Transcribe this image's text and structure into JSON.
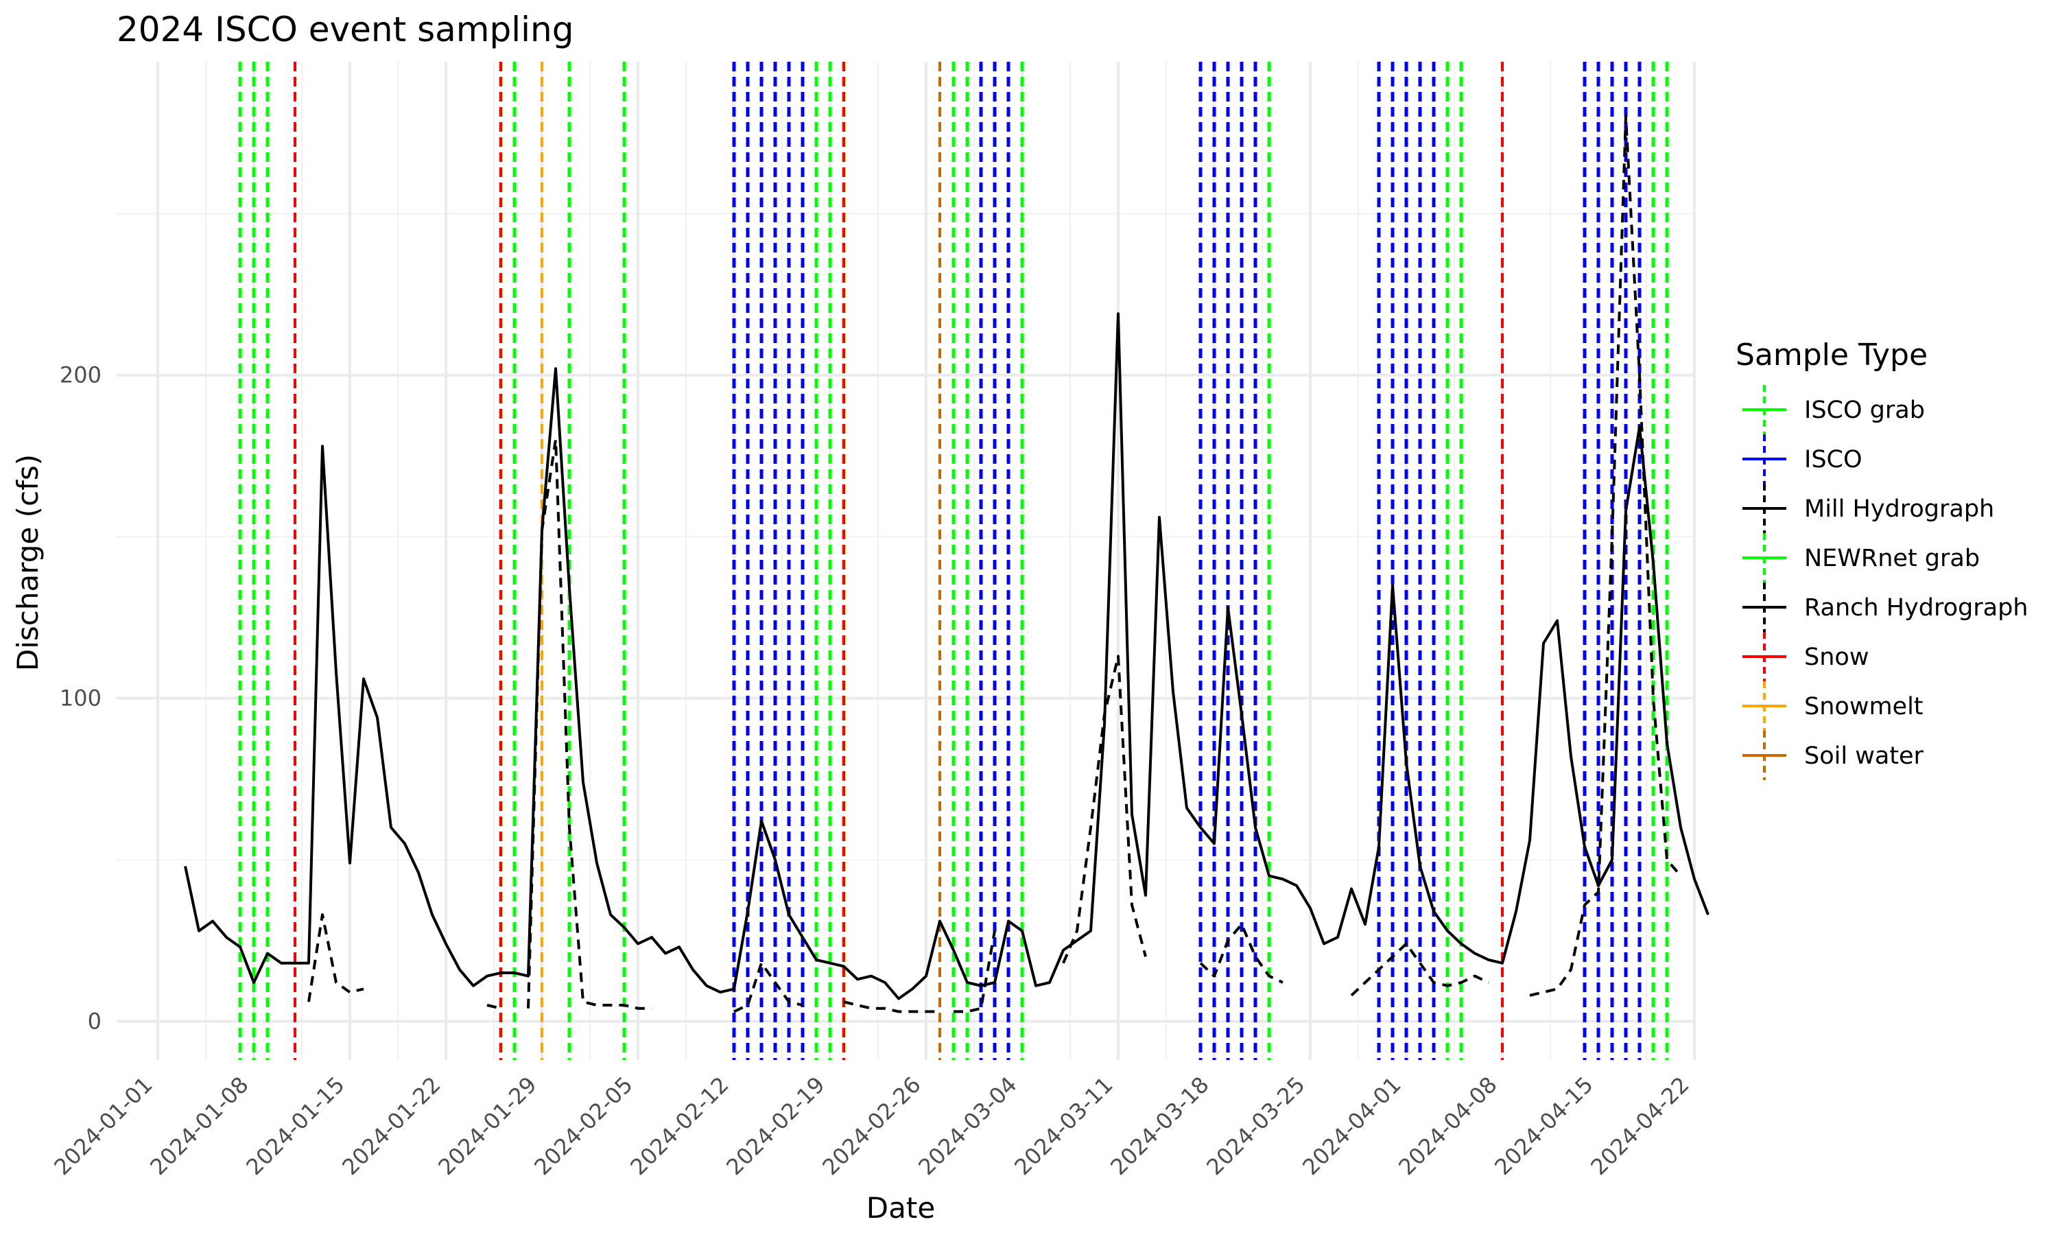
{
  "chart_data": {
    "type": "line",
    "title": "2024 ISCO event sampling",
    "xlabel": "Date",
    "ylabel": "Discharge (cfs)",
    "x_ticks": [
      "2024-01-01",
      "2024-01-08",
      "2024-01-15",
      "2024-01-22",
      "2024-01-29",
      "2024-02-05",
      "2024-02-12",
      "2024-02-19",
      "2024-02-26",
      "2024-03-04",
      "2024-03-11",
      "2024-03-18",
      "2024-03-25",
      "2024-04-01",
      "2024-04-08",
      "2024-04-15",
      "2024-04-22"
    ],
    "y_ticks": [
      0,
      100,
      200
    ],
    "xlim": [
      "2023-12-29",
      "2024-04-22"
    ],
    "ylim": [
      -12,
      297
    ],
    "grid": true,
    "legend": {
      "title": "Sample Type",
      "position": "right",
      "items": [
        {
          "label": "ISCO grab",
          "color": "#00ff00",
          "line": "solid",
          "marker": "dashed"
        },
        {
          "label": "ISCO",
          "color": "#0000ff",
          "line": "solid",
          "marker": "dashed"
        },
        {
          "label": "Mill Hydrograph",
          "color": "#000000",
          "line": "solid",
          "marker": "dashed"
        },
        {
          "label": "NEWRnet grab",
          "color": "#00ff00",
          "line": "solid",
          "marker": "dashed"
        },
        {
          "label": "Ranch Hydrograph",
          "color": "#000000",
          "line": "solid",
          "marker": "dashed"
        },
        {
          "label": "Snow",
          "color": "#ff0000",
          "line": "solid",
          "marker": "dashed"
        },
        {
          "label": "Snowmelt",
          "color": "#ffa500",
          "line": "solid",
          "marker": "dashed"
        },
        {
          "label": "Soil water",
          "color": "#cc6600",
          "line": "solid",
          "marker": "dashed"
        }
      ]
    },
    "series": [
      {
        "name": "Mill Hydrograph",
        "color": "#000000",
        "dash": "solid",
        "points": [
          [
            "2024-01-03",
            48
          ],
          [
            "2024-01-04",
            28
          ],
          [
            "2024-01-05",
            31
          ],
          [
            "2024-01-06",
            26
          ],
          [
            "2024-01-07",
            23
          ],
          [
            "2024-01-08",
            12
          ],
          [
            "2024-01-09",
            21
          ],
          [
            "2024-01-10",
            18
          ],
          [
            "2024-01-11",
            18
          ],
          [
            "2024-01-12",
            18
          ],
          [
            "2024-01-13",
            178
          ],
          [
            "2024-01-14",
            108
          ],
          [
            "2024-01-15",
            49
          ],
          [
            "2024-01-16",
            106
          ],
          [
            "2024-01-17",
            94
          ],
          [
            "2024-01-18",
            60
          ],
          [
            "2024-01-19",
            55
          ],
          [
            "2024-01-20",
            46
          ],
          [
            "2024-01-21",
            33
          ],
          [
            "2024-01-22",
            24
          ],
          [
            "2024-01-23",
            16
          ],
          [
            "2024-01-24",
            11
          ],
          [
            "2024-01-25",
            14
          ],
          [
            "2024-01-26",
            15
          ],
          [
            "2024-01-27",
            15
          ],
          [
            "2024-01-28",
            14
          ],
          [
            "2024-01-29",
            152
          ],
          [
            "2024-01-30",
            202
          ],
          [
            "2024-01-31",
            134
          ],
          [
            "2024-02-01",
            74
          ],
          [
            "2024-02-02",
            49
          ],
          [
            "2024-02-03",
            33
          ],
          [
            "2024-02-04",
            29
          ],
          [
            "2024-02-05",
            24
          ],
          [
            "2024-02-06",
            26
          ],
          [
            "2024-02-07",
            21
          ],
          [
            "2024-02-08",
            23
          ],
          [
            "2024-02-09",
            16
          ],
          [
            "2024-02-10",
            11
          ],
          [
            "2024-02-11",
            9
          ],
          [
            "2024-02-12",
            10
          ],
          [
            "2024-02-13",
            34
          ],
          [
            "2024-02-14",
            62
          ],
          [
            "2024-02-15",
            50
          ],
          [
            "2024-02-16",
            33
          ],
          [
            "2024-02-17",
            26
          ],
          [
            "2024-02-18",
            19
          ],
          [
            "2024-02-19",
            18
          ],
          [
            "2024-02-20",
            17
          ],
          [
            "2024-02-21",
            13
          ],
          [
            "2024-02-22",
            14
          ],
          [
            "2024-02-23",
            12
          ],
          [
            "2024-02-24",
            7
          ],
          [
            "2024-02-25",
            10
          ],
          [
            "2024-02-26",
            14
          ],
          [
            "2024-02-27",
            31
          ],
          [
            "2024-02-28",
            22
          ],
          [
            "2024-02-29",
            12
          ],
          [
            "2024-03-01",
            11
          ],
          [
            "2024-03-02",
            12
          ],
          [
            "2024-03-03",
            31
          ],
          [
            "2024-03-04",
            28
          ],
          [
            "2024-03-05",
            11
          ],
          [
            "2024-03-06",
            12
          ],
          [
            "2024-03-07",
            22
          ],
          [
            "2024-03-08",
            25
          ],
          [
            "2024-03-09",
            28
          ],
          [
            "2024-03-10",
            92
          ],
          [
            "2024-03-11",
            219
          ],
          [
            "2024-03-12",
            64
          ],
          [
            "2024-03-13",
            39
          ],
          [
            "2024-03-14",
            156
          ],
          [
            "2024-03-15",
            102
          ],
          [
            "2024-03-16",
            66
          ],
          [
            "2024-03-17",
            60
          ],
          [
            "2024-03-18",
            55
          ],
          [
            "2024-03-19",
            128
          ],
          [
            "2024-03-20",
            95
          ],
          [
            "2024-03-21",
            60
          ],
          [
            "2024-03-22",
            45
          ],
          [
            "2024-03-23",
            44
          ],
          [
            "2024-03-24",
            42
          ],
          [
            "2024-03-25",
            35
          ],
          [
            "2024-03-26",
            24
          ],
          [
            "2024-03-27",
            26
          ],
          [
            "2024-03-28",
            41
          ],
          [
            "2024-03-29",
            30
          ],
          [
            "2024-03-30",
            54
          ],
          [
            "2024-03-31",
            135
          ],
          [
            "2024-04-01",
            80
          ],
          [
            "2024-04-02",
            48
          ],
          [
            "2024-04-03",
            34
          ],
          [
            "2024-04-04",
            28
          ],
          [
            "2024-04-05",
            24
          ],
          [
            "2024-04-06",
            21
          ],
          [
            "2024-04-07",
            19
          ],
          [
            "2024-04-08",
            18
          ],
          [
            "2024-04-09",
            34
          ],
          [
            "2024-04-10",
            56
          ],
          [
            "2024-04-11",
            117
          ],
          [
            "2024-04-12",
            124
          ],
          [
            "2024-04-13",
            82
          ],
          [
            "2024-04-14",
            54
          ],
          [
            "2024-04-15",
            42
          ],
          [
            "2024-04-16",
            50
          ],
          [
            "2024-04-17",
            158
          ],
          [
            "2024-04-18",
            184
          ],
          [
            "2024-04-19",
            142
          ],
          [
            "2024-04-20",
            86
          ],
          [
            "2024-04-21",
            60
          ],
          [
            "2024-04-22",
            44
          ],
          [
            "2024-04-23",
            33
          ]
        ]
      },
      {
        "name": "Ranch Hydrograph",
        "color": "#000000",
        "dash": "dashed",
        "segments": [
          [
            [
              "2024-01-12",
              6
            ],
            [
              "2024-01-13",
              33
            ],
            [
              "2024-01-14",
              12
            ],
            [
              "2024-01-15",
              9
            ],
            [
              "2024-01-16",
              10
            ]
          ],
          [
            [
              "2024-01-25",
              5
            ],
            [
              "2024-01-26",
              4
            ]
          ],
          [
            [
              "2024-01-28",
              4
            ],
            [
              "2024-01-29",
              152
            ],
            [
              "2024-01-30",
              180
            ],
            [
              "2024-01-31",
              60
            ],
            [
              "2024-02-01",
              6
            ],
            [
              "2024-02-02",
              5
            ],
            [
              "2024-02-03",
              5
            ],
            [
              "2024-02-04",
              5
            ],
            [
              "2024-02-05",
              4
            ],
            [
              "2024-02-06",
              4
            ]
          ],
          [
            [
              "2024-02-12",
              3
            ],
            [
              "2024-02-13",
              5
            ],
            [
              "2024-02-14",
              18
            ],
            [
              "2024-02-15",
              12
            ],
            [
              "2024-02-16",
              6
            ],
            [
              "2024-02-17",
              5
            ]
          ],
          [
            [
              "2024-02-20",
              6
            ],
            [
              "2024-02-21",
              5
            ],
            [
              "2024-02-22",
              4
            ],
            [
              "2024-02-23",
              4
            ],
            [
              "2024-02-24",
              3
            ],
            [
              "2024-02-25",
              3
            ],
            [
              "2024-02-26",
              3
            ],
            [
              "2024-02-27",
              3
            ]
          ],
          [
            [
              "2024-02-28",
              3
            ],
            [
              "2024-02-29",
              3
            ],
            [
              "2024-03-01",
              4
            ],
            [
              "2024-03-02",
              28
            ]
          ],
          [
            [
              "2024-03-07",
              18
            ],
            [
              "2024-03-08",
              28
            ],
            [
              "2024-03-09",
              60
            ],
            [
              "2024-03-10",
              95
            ],
            [
              "2024-03-11",
              113
            ],
            [
              "2024-03-12",
              36
            ],
            [
              "2024-03-13",
              20
            ]
          ],
          [
            [
              "2024-03-17",
              18
            ],
            [
              "2024-03-18",
              14
            ],
            [
              "2024-03-19",
              25
            ],
            [
              "2024-03-20",
              30
            ],
            [
              "2024-03-21",
              20
            ],
            [
              "2024-03-22",
              14
            ],
            [
              "2024-03-23",
              12
            ]
          ],
          [
            [
              "2024-03-28",
              8
            ],
            [
              "2024-03-29",
              12
            ],
            [
              "2024-03-30",
              16
            ],
            [
              "2024-03-31",
              20
            ],
            [
              "2024-04-01",
              24
            ],
            [
              "2024-04-02",
              18
            ],
            [
              "2024-04-03",
              12
            ],
            [
              "2024-04-04",
              11
            ],
            [
              "2024-04-05",
              12
            ],
            [
              "2024-04-06",
              14
            ],
            [
              "2024-04-07",
              12
            ]
          ],
          [
            [
              "2024-04-10",
              8
            ],
            [
              "2024-04-11",
              9
            ],
            [
              "2024-04-12",
              10
            ],
            [
              "2024-04-13",
              16
            ],
            [
              "2024-04-14",
              36
            ],
            [
              "2024-04-15",
              40
            ],
            [
              "2024-04-16",
              150
            ],
            [
              "2024-04-17",
              280
            ],
            [
              "2024-04-18",
              200
            ],
            [
              "2024-04-19",
              100
            ],
            [
              "2024-04-20",
              50
            ],
            [
              "2024-04-21",
              45
            ]
          ]
        ]
      }
    ],
    "event_lines": [
      {
        "type": "ISCO grab",
        "color": "#00ff00",
        "dates": [
          "2024-01-07",
          "2024-01-08",
          "2024-01-26",
          "2024-01-31",
          "2024-02-04",
          "2024-02-12",
          "2024-02-13",
          "2024-02-14",
          "2024-02-15",
          "2024-02-16",
          "2024-02-17",
          "2024-02-18",
          "2024-02-19",
          "2024-02-20",
          "2024-02-28",
          "2024-02-29",
          "2024-03-01",
          "2024-03-03",
          "2024-03-04",
          "2024-03-17",
          "2024-03-18",
          "2024-03-19",
          "2024-03-20",
          "2024-03-21",
          "2024-03-22",
          "2024-03-30",
          "2024-03-31",
          "2024-04-01",
          "2024-04-02",
          "2024-04-03",
          "2024-04-04",
          "2024-04-05",
          "2024-04-14",
          "2024-04-15",
          "2024-04-16",
          "2024-04-17",
          "2024-04-19",
          "2024-04-20"
        ]
      },
      {
        "type": "ISCO",
        "color": "#0000ff",
        "dates": [
          "2024-02-12",
          "2024-02-13",
          "2024-02-14",
          "2024-02-15",
          "2024-02-16",
          "2024-02-17",
          "2024-03-01",
          "2024-03-02",
          "2024-03-03",
          "2024-03-17",
          "2024-03-18",
          "2024-03-19",
          "2024-03-20",
          "2024-03-21",
          "2024-03-30",
          "2024-03-31",
          "2024-04-01",
          "2024-04-02",
          "2024-04-03",
          "2024-04-14",
          "2024-04-15",
          "2024-04-16",
          "2024-04-17",
          "2024-04-18"
        ]
      },
      {
        "type": "NEWRnet grab",
        "color": "#00ff00",
        "dates": [
          "2024-01-09",
          "2024-01-27"
        ]
      },
      {
        "type": "Snow",
        "color": "#ff0000",
        "dates": [
          "2024-01-11",
          "2024-01-26",
          "2024-02-20",
          "2024-03-17",
          "2024-04-08"
        ]
      },
      {
        "type": "Snowmelt",
        "color": "#ffa500",
        "dates": [
          "2024-01-29"
        ]
      },
      {
        "type": "Soil water",
        "color": "#cc6600",
        "dates": [
          "2024-02-27"
        ]
      }
    ]
  }
}
